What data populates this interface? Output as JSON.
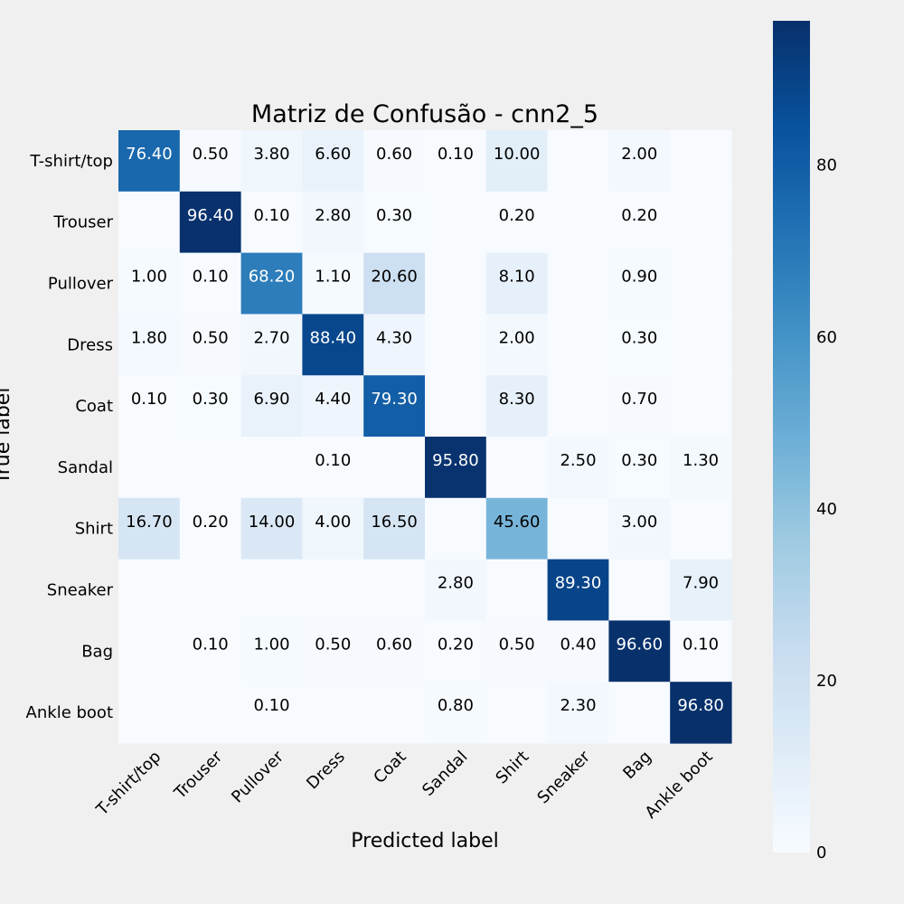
{
  "chart_data": {
    "type": "heatmap",
    "title": "Matriz de Confusão - cnn2_5",
    "xlabel": "Predicted label",
    "ylabel": "True label",
    "x_categories": [
      "T-shirt/top",
      "Trouser",
      "Pullover",
      "Dress",
      "Coat",
      "Sandal",
      "Shirt",
      "Sneaker",
      "Bag",
      "Ankle boot"
    ],
    "y_categories": [
      "T-shirt/top",
      "Trouser",
      "Pullover",
      "Dress",
      "Coat",
      "Sandal",
      "Shirt",
      "Sneaker",
      "Bag",
      "Ankle boot"
    ],
    "values": [
      [
        76.4,
        0.5,
        3.8,
        6.6,
        0.6,
        0.1,
        10.0,
        0,
        2.0,
        0
      ],
      [
        0,
        96.4,
        0.1,
        2.8,
        0.3,
        0,
        0.2,
        0,
        0.2,
        0
      ],
      [
        1.0,
        0.1,
        68.2,
        1.1,
        20.6,
        0,
        8.1,
        0,
        0.9,
        0
      ],
      [
        1.8,
        0.5,
        2.7,
        88.4,
        4.3,
        0,
        2.0,
        0,
        0.3,
        0
      ],
      [
        0.1,
        0.3,
        6.9,
        4.4,
        79.3,
        0,
        8.3,
        0,
        0.7,
        0
      ],
      [
        0,
        0,
        0,
        0.1,
        0,
        95.8,
        0,
        2.5,
        0.3,
        1.3
      ],
      [
        16.7,
        0.2,
        14.0,
        4.0,
        16.5,
        0,
        45.6,
        0,
        3.0,
        0
      ],
      [
        0,
        0,
        0,
        0,
        0,
        2.8,
        0,
        89.3,
        0,
        7.9
      ],
      [
        0,
        0.1,
        1.0,
        0.5,
        0.6,
        0.2,
        0.5,
        0.4,
        96.6,
        0.1
      ],
      [
        0,
        0,
        0.1,
        0,
        0,
        0.8,
        0,
        2.3,
        0,
        96.8
      ]
    ],
    "value_format": "2 decimals, zero cells unlabeled",
    "colormap": "Blues",
    "color_range": [
      0,
      96.8
    ],
    "colorbar_ticks": [
      0,
      20,
      40,
      60,
      80
    ],
    "grid": false
  }
}
